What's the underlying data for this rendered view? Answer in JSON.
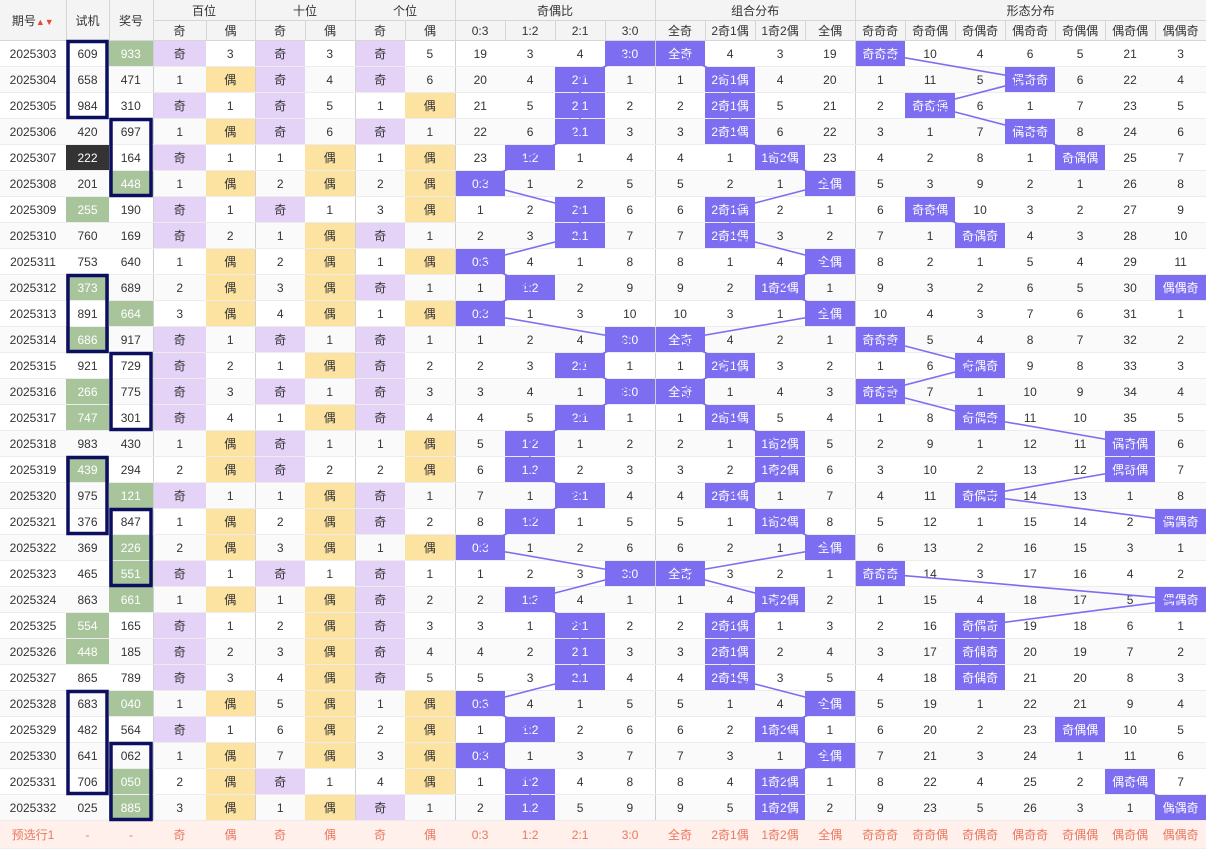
{
  "headers": {
    "issue": "期号",
    "sort_icon": "▲▼",
    "test": "试机",
    "win": "奖号",
    "groups": [
      "百位",
      "十位",
      "个位",
      "奇偶比",
      "组合分布",
      "形态分布"
    ],
    "sub_oe": [
      "奇",
      "偶"
    ],
    "ratio": [
      "0:3",
      "1:2",
      "2:1",
      "3:0"
    ],
    "combo": [
      "全奇",
      "2奇1偶",
      "1奇2偶",
      "全偶"
    ],
    "shape": [
      "奇奇奇",
      "奇奇偶",
      "奇偶奇",
      "偶奇奇",
      "奇偶偶",
      "偶奇偶",
      "偶偶奇"
    ]
  },
  "rows": [
    {
      "issue": "2025303",
      "test": "609",
      "win": "933",
      "th": "win",
      "pos": [
        [
          "o",
          "3"
        ],
        [
          "o",
          "3"
        ],
        [
          "o",
          "5"
        ]
      ],
      "ratio": [
        "19",
        "3",
        "4",
        "3:0"
      ],
      "combo": [
        "全奇",
        "4",
        "3",
        "19"
      ],
      "shape": [
        "奇奇奇",
        "10",
        "4",
        "6",
        "5",
        "21",
        "3"
      ]
    },
    {
      "issue": "2025304",
      "test": "658",
      "win": "471",
      "th": "",
      "pos": [
        [
          "e",
          "1"
        ],
        [
          "o",
          "4"
        ],
        [
          "o",
          "6"
        ]
      ],
      "ratio": [
        "20",
        "4",
        "2:1",
        "1"
      ],
      "combo": [
        "1",
        "2奇1偶",
        "4",
        "20"
      ],
      "shape": [
        "1",
        "11",
        "5",
        "偶奇奇",
        "6",
        "22",
        "4"
      ]
    },
    {
      "issue": "2025305",
      "test": "984",
      "win": "310",
      "th": "",
      "pos": [
        [
          "o",
          "1"
        ],
        [
          "o",
          "5"
        ],
        [
          "e",
          "1"
        ]
      ],
      "ratio": [
        "21",
        "5",
        "2:1",
        "2"
      ],
      "combo": [
        "2",
        "2奇1偶",
        "5",
        "21"
      ],
      "shape": [
        "2",
        "奇奇偶",
        "6",
        "1",
        "7",
        "23",
        "5"
      ]
    },
    {
      "issue": "2025306",
      "test": "420",
      "win": "697",
      "th": "",
      "pos": [
        [
          "e",
          "1"
        ],
        [
          "o",
          "6"
        ],
        [
          "o",
          "1"
        ]
      ],
      "ratio": [
        "22",
        "6",
        "2:1",
        "3"
      ],
      "combo": [
        "3",
        "2奇1偶",
        "6",
        "22"
      ],
      "shape": [
        "3",
        "1",
        "7",
        "偶奇奇",
        "8",
        "24",
        "6"
      ]
    },
    {
      "issue": "2025307",
      "test": "222",
      "win": "164",
      "th": "test",
      "pos": [
        [
          "o",
          "1"
        ],
        [
          "e",
          "1"
        ],
        [
          "e",
          "1"
        ]
      ],
      "ratio": [
        "23",
        "1:2",
        "1",
        "4"
      ],
      "combo": [
        "4",
        "1",
        "1奇2偶",
        "23"
      ],
      "shape": [
        "4",
        "2",
        "8",
        "1",
        "奇偶偶",
        "25",
        "7"
      ]
    },
    {
      "issue": "2025308",
      "test": "201",
      "win": "448",
      "th": "win",
      "pos": [
        [
          "e",
          "1"
        ],
        [
          "e",
          "2"
        ],
        [
          "e",
          "2"
        ]
      ],
      "ratio": [
        "0:3",
        "1",
        "2",
        "5"
      ],
      "combo": [
        "5",
        "2",
        "1",
        "全偶"
      ],
      "shape": [
        "5",
        "3",
        "9",
        "2",
        "1",
        "26",
        "8"
      ]
    },
    {
      "issue": "2025309",
      "test": "255",
      "win": "190",
      "th": "test",
      "pos": [
        [
          "o",
          "1"
        ],
        [
          "o",
          "1"
        ],
        [
          "e",
          "3"
        ]
      ],
      "ratio": [
        "1",
        "2",
        "2:1",
        "6"
      ],
      "combo": [
        "6",
        "2奇1偶",
        "2",
        "1"
      ],
      "shape": [
        "6",
        "奇奇偶",
        "10",
        "3",
        "2",
        "27",
        "9"
      ]
    },
    {
      "issue": "2025310",
      "test": "760",
      "win": "169",
      "th": "",
      "pos": [
        [
          "o",
          "2"
        ],
        [
          "e",
          "1"
        ],
        [
          "o",
          "1"
        ]
      ],
      "ratio": [
        "2",
        "3",
        "2:1",
        "7"
      ],
      "combo": [
        "7",
        "2奇1偶",
        "3",
        "2"
      ],
      "shape": [
        "7",
        "1",
        "奇偶奇",
        "4",
        "3",
        "28",
        "10"
      ]
    },
    {
      "issue": "2025311",
      "test": "753",
      "win": "640",
      "th": "",
      "pos": [
        [
          "e",
          "1"
        ],
        [
          "e",
          "2"
        ],
        [
          "e",
          "1"
        ]
      ],
      "ratio": [
        "0:3",
        "4",
        "1",
        "8"
      ],
      "combo": [
        "8",
        "1",
        "4",
        "全偶"
      ],
      "shape": [
        "8",
        "2",
        "1",
        "5",
        "4",
        "29",
        "11"
      ]
    },
    {
      "issue": "2025312",
      "test": "373",
      "win": "689",
      "th": "test",
      "pos": [
        [
          "e",
          "2"
        ],
        [
          "e",
          "3"
        ],
        [
          "o",
          "1"
        ]
      ],
      "ratio": [
        "1",
        "1:2",
        "2",
        "9"
      ],
      "combo": [
        "9",
        "2",
        "1奇2偶",
        "1"
      ],
      "shape": [
        "9",
        "3",
        "2",
        "6",
        "5",
        "30",
        "偶偶奇"
      ]
    },
    {
      "issue": "2025313",
      "test": "891",
      "win": "664",
      "th": "win",
      "pos": [
        [
          "e",
          "3"
        ],
        [
          "e",
          "4"
        ],
        [
          "e",
          "1"
        ]
      ],
      "ratio": [
        "0:3",
        "1",
        "3",
        "10"
      ],
      "combo": [
        "10",
        "3",
        "1",
        "全偶"
      ],
      "shape": [
        "10",
        "4",
        "3",
        "7",
        "6",
        "31",
        "1"
      ]
    },
    {
      "issue": "2025314",
      "test": "686",
      "win": "917",
      "th": "test",
      "pos": [
        [
          "o",
          "1"
        ],
        [
          "o",
          "1"
        ],
        [
          "o",
          "1"
        ]
      ],
      "ratio": [
        "1",
        "2",
        "4",
        "3:0"
      ],
      "combo": [
        "全奇",
        "4",
        "2",
        "1"
      ],
      "shape": [
        "奇奇奇",
        "5",
        "4",
        "8",
        "7",
        "32",
        "2"
      ]
    },
    {
      "issue": "2025315",
      "test": "921",
      "win": "729",
      "th": "",
      "pos": [
        [
          "o",
          "2"
        ],
        [
          "e",
          "1"
        ],
        [
          "o",
          "2"
        ]
      ],
      "ratio": [
        "2",
        "3",
        "2:1",
        "1"
      ],
      "combo": [
        "1",
        "2奇1偶",
        "3",
        "2"
      ],
      "shape": [
        "1",
        "6",
        "奇偶奇",
        "9",
        "8",
        "33",
        "3"
      ]
    },
    {
      "issue": "2025316",
      "test": "266",
      "win": "775",
      "th": "test",
      "pos": [
        [
          "o",
          "3"
        ],
        [
          "o",
          "1"
        ],
        [
          "o",
          "3"
        ]
      ],
      "ratio": [
        "3",
        "4",
        "1",
        "3:0"
      ],
      "combo": [
        "全奇",
        "1",
        "4",
        "3"
      ],
      "shape": [
        "奇奇奇",
        "7",
        "1",
        "10",
        "9",
        "34",
        "4"
      ]
    },
    {
      "issue": "2025317",
      "test": "747",
      "win": "301",
      "th": "test",
      "pos": [
        [
          "o",
          "4"
        ],
        [
          "e",
          "1"
        ],
        [
          "o",
          "4"
        ]
      ],
      "ratio": [
        "4",
        "5",
        "2:1",
        "1"
      ],
      "combo": [
        "1",
        "2奇1偶",
        "5",
        "4"
      ],
      "shape": [
        "1",
        "8",
        "奇偶奇",
        "11",
        "10",
        "35",
        "5"
      ]
    },
    {
      "issue": "2025318",
      "test": "983",
      "win": "430",
      "th": "",
      "pos": [
        [
          "e",
          "1"
        ],
        [
          "o",
          "1"
        ],
        [
          "e",
          "1"
        ]
      ],
      "ratio": [
        "5",
        "1:2",
        "1",
        "2"
      ],
      "combo": [
        "2",
        "1",
        "1奇2偶",
        "5"
      ],
      "shape": [
        "2",
        "9",
        "1",
        "12",
        "11",
        "偶奇偶",
        "6"
      ]
    },
    {
      "issue": "2025319",
      "test": "439",
      "win": "294",
      "th": "test",
      "pos": [
        [
          "e",
          "2"
        ],
        [
          "o",
          "2"
        ],
        [
          "e",
          "2"
        ]
      ],
      "ratio": [
        "6",
        "1:2",
        "2",
        "3"
      ],
      "combo": [
        "3",
        "2",
        "1奇2偶",
        "6"
      ],
      "shape": [
        "3",
        "10",
        "2",
        "13",
        "12",
        "偶奇偶",
        "7"
      ]
    },
    {
      "issue": "2025320",
      "test": "975",
      "win": "121",
      "th": "win",
      "pos": [
        [
          "o",
          "1"
        ],
        [
          "e",
          "1"
        ],
        [
          "o",
          "1"
        ]
      ],
      "ratio": [
        "7",
        "1",
        "2:1",
        "4"
      ],
      "combo": [
        "4",
        "2奇1偶",
        "1",
        "7"
      ],
      "shape": [
        "4",
        "11",
        "奇偶奇",
        "14",
        "13",
        "1",
        "8"
      ]
    },
    {
      "issue": "2025321",
      "test": "376",
      "win": "847",
      "th": "",
      "pos": [
        [
          "e",
          "1"
        ],
        [
          "e",
          "2"
        ],
        [
          "o",
          "2"
        ]
      ],
      "ratio": [
        "8",
        "1:2",
        "1",
        "5"
      ],
      "combo": [
        "5",
        "1",
        "1奇2偶",
        "8"
      ],
      "shape": [
        "5",
        "12",
        "1",
        "15",
        "14",
        "2",
        "偶偶奇"
      ]
    },
    {
      "issue": "2025322",
      "test": "369",
      "win": "226",
      "th": "win",
      "pos": [
        [
          "e",
          "2"
        ],
        [
          "e",
          "3"
        ],
        [
          "e",
          "1"
        ]
      ],
      "ratio": [
        "0:3",
        "1",
        "2",
        "6"
      ],
      "combo": [
        "6",
        "2",
        "1",
        "全偶"
      ],
      "shape": [
        "6",
        "13",
        "2",
        "16",
        "15",
        "3",
        "1"
      ]
    },
    {
      "issue": "2025323",
      "test": "465",
      "win": "551",
      "th": "win",
      "pos": [
        [
          "o",
          "1"
        ],
        [
          "o",
          "1"
        ],
        [
          "o",
          "1"
        ]
      ],
      "ratio": [
        "1",
        "2",
        "3",
        "3:0"
      ],
      "combo": [
        "全奇",
        "3",
        "2",
        "1"
      ],
      "shape": [
        "奇奇奇",
        "14",
        "3",
        "17",
        "16",
        "4",
        "2"
      ]
    },
    {
      "issue": "2025324",
      "test": "863",
      "win": "661",
      "th": "win",
      "pos": [
        [
          "e",
          "1"
        ],
        [
          "e",
          "1"
        ],
        [
          "o",
          "2"
        ]
      ],
      "ratio": [
        "2",
        "1:2",
        "4",
        "1"
      ],
      "combo": [
        "1",
        "4",
        "1奇2偶",
        "2"
      ],
      "shape": [
        "1",
        "15",
        "4",
        "18",
        "17",
        "5",
        "偶偶奇"
      ]
    },
    {
      "issue": "2025325",
      "test": "554",
      "win": "165",
      "th": "test",
      "pos": [
        [
          "o",
          "1"
        ],
        [
          "e",
          "2"
        ],
        [
          "o",
          "3"
        ]
      ],
      "ratio": [
        "3",
        "1",
        "2:1",
        "2"
      ],
      "combo": [
        "2",
        "2奇1偶",
        "1",
        "3"
      ],
      "shape": [
        "2",
        "16",
        "奇偶奇",
        "19",
        "18",
        "6",
        "1"
      ]
    },
    {
      "issue": "2025326",
      "test": "448",
      "win": "185",
      "th": "test",
      "pos": [
        [
          "o",
          "2"
        ],
        [
          "e",
          "3"
        ],
        [
          "o",
          "4"
        ]
      ],
      "ratio": [
        "4",
        "2",
        "2:1",
        "3"
      ],
      "combo": [
        "3",
        "2奇1偶",
        "2",
        "4"
      ],
      "shape": [
        "3",
        "17",
        "奇偶奇",
        "20",
        "19",
        "7",
        "2"
      ]
    },
    {
      "issue": "2025327",
      "test": "865",
      "win": "789",
      "th": "",
      "pos": [
        [
          "o",
          "3"
        ],
        [
          "e",
          "4"
        ],
        [
          "o",
          "5"
        ]
      ],
      "ratio": [
        "5",
        "3",
        "2:1",
        "4"
      ],
      "combo": [
        "4",
        "2奇1偶",
        "3",
        "5"
      ],
      "shape": [
        "4",
        "18",
        "奇偶奇",
        "21",
        "20",
        "8",
        "3"
      ]
    },
    {
      "issue": "2025328",
      "test": "683",
      "win": "040",
      "th": "win",
      "pos": [
        [
          "e",
          "1"
        ],
        [
          "e",
          "5"
        ],
        [
          "e",
          "1"
        ]
      ],
      "ratio": [
        "0:3",
        "4",
        "1",
        "5"
      ],
      "combo": [
        "5",
        "1",
        "4",
        "全偶"
      ],
      "shape": [
        "5",
        "19",
        "1",
        "22",
        "21",
        "9",
        "4"
      ]
    },
    {
      "issue": "2025329",
      "test": "482",
      "win": "564",
      "th": "",
      "pos": [
        [
          "o",
          "1"
        ],
        [
          "e",
          "6"
        ],
        [
          "e",
          "2"
        ]
      ],
      "ratio": [
        "1",
        "1:2",
        "2",
        "6"
      ],
      "combo": [
        "6",
        "2",
        "1奇2偶",
        "1"
      ],
      "shape": [
        "6",
        "20",
        "2",
        "23",
        "奇偶偶",
        "10",
        "5"
      ]
    },
    {
      "issue": "2025330",
      "test": "641",
      "win": "062",
      "th": "",
      "pos": [
        [
          "e",
          "1"
        ],
        [
          "e",
          "7"
        ],
        [
          "e",
          "3"
        ]
      ],
      "ratio": [
        "0:3",
        "1",
        "3",
        "7"
      ],
      "combo": [
        "7",
        "3",
        "1",
        "全偶"
      ],
      "shape": [
        "7",
        "21",
        "3",
        "24",
        "1",
        "11",
        "6"
      ]
    },
    {
      "issue": "2025331",
      "test": "706",
      "win": "050",
      "th": "win",
      "pos": [
        [
          "e",
          "2"
        ],
        [
          "o",
          "1"
        ],
        [
          "e",
          "4"
        ]
      ],
      "ratio": [
        "1",
        "1:2",
        "4",
        "8"
      ],
      "combo": [
        "8",
        "4",
        "1奇2偶",
        "1"
      ],
      "shape": [
        "8",
        "22",
        "4",
        "25",
        "2",
        "偶奇偶",
        "7"
      ]
    },
    {
      "issue": "2025332",
      "test": "025",
      "win": "885",
      "th": "win",
      "pos": [
        [
          "e",
          "3"
        ],
        [
          "e",
          "1"
        ],
        [
          "o",
          "1"
        ]
      ],
      "ratio": [
        "2",
        "1:2",
        "5",
        "9"
      ],
      "combo": [
        "9",
        "5",
        "1奇2偶",
        "2"
      ],
      "shape": [
        "9",
        "23",
        "5",
        "26",
        "3",
        "1",
        "偶偶奇"
      ]
    }
  ],
  "footer": {
    "label": "预选行1",
    "test": "-",
    "win": "-",
    "oe": [
      "奇",
      "偶",
      "奇",
      "偶",
      "奇",
      "偶"
    ],
    "ratio": [
      "0:3",
      "1:2",
      "2:1",
      "3:0"
    ],
    "combo": [
      "全奇",
      "2奇1偶",
      "1奇2偶",
      "全偶"
    ],
    "shape": [
      "奇奇奇",
      "奇奇偶",
      "奇偶奇",
      "偶奇奇",
      "奇偶偶",
      "偶奇偶",
      "偶偶奇"
    ]
  },
  "highlight_boxes": [
    {
      "col": "test",
      "from": "2025303",
      "to": "2025305"
    },
    {
      "col": "win",
      "from": "2025306",
      "to": "2025308"
    },
    {
      "col": "test",
      "from": "2025312",
      "to": "2025314"
    },
    {
      "col": "win",
      "from": "2025315",
      "to": "2025317"
    },
    {
      "col": "test",
      "from": "2025319",
      "to": "2025321"
    },
    {
      "col": "win",
      "from": "2025321",
      "to": "2025323"
    },
    {
      "col": "test",
      "from": "2025328",
      "to": "2025331"
    },
    {
      "col": "win",
      "from": "2025330",
      "to": "2025332"
    }
  ],
  "colors": {
    "odd": "#e4d2f7",
    "even": "#fde3a2",
    "hot": "#a7c49a",
    "dark": "#333333",
    "purple": "#7d6ef1",
    "box": "#0c0f60",
    "line": "#7d6ef1"
  }
}
